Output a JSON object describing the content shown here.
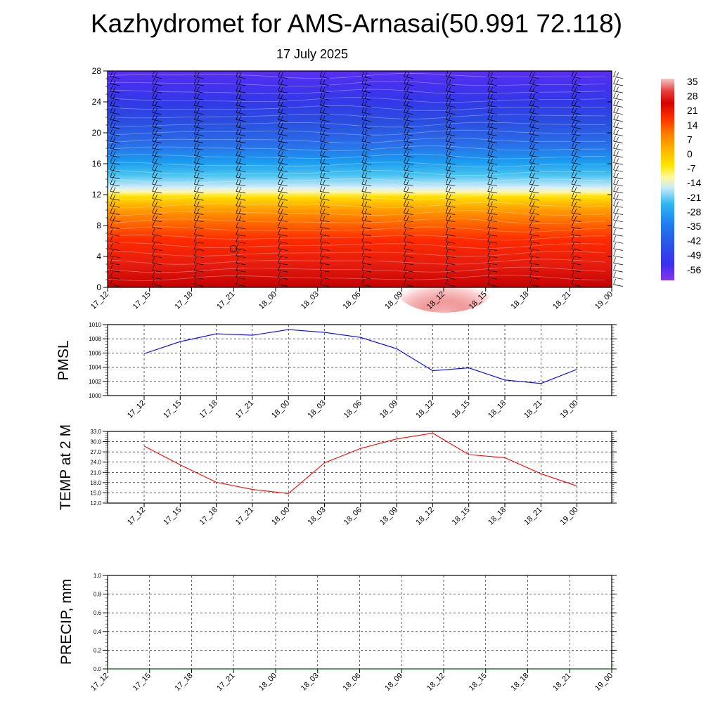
{
  "header": {
    "title": "Kazhydromet for AMS-Arnasai(50.991 72.118)",
    "subtitle": "17 July 2025"
  },
  "time_labels": [
    "17_12",
    "17_15",
    "17_18",
    "17_21",
    "18_00",
    "18_03",
    "18_06",
    "18_09",
    "18_12",
    "18_15",
    "18_18",
    "18_21",
    "19_00"
  ],
  "colors": {
    "pmsl_line": "#0000ff",
    "temp_line": "#ff0000",
    "precip_line": "#006400",
    "colorbar_stops": [
      "#f2c8c8",
      "#e22525",
      "#c80000",
      "#ff3a00",
      "#ff8c00",
      "#ffc800",
      "#fff890",
      "#e8f4f8",
      "#3cbef0",
      "#1e8cf0",
      "#2850e8",
      "#3a2ef0",
      "#8a2be2"
    ]
  },
  "chart_data": [
    {
      "id": "cross-section",
      "type": "heatmap",
      "title": "",
      "xlabel": "",
      "ylabel": "",
      "ylim": [
        0,
        28
      ],
      "yticks": [
        0,
        4,
        8,
        12,
        16,
        20,
        24,
        28
      ],
      "x_tick_labels": [
        "17_12",
        "17_15",
        "17_18",
        "17_21",
        "18_00",
        "18_03",
        "18_06",
        "18_09",
        "18_12",
        "18_15",
        "18_18",
        "18_21",
        "19_00"
      ],
      "colorbar_labels": [
        "35",
        "28",
        "21",
        "14",
        "7",
        "0",
        "-7",
        "-14",
        "-21",
        "-28",
        "-35",
        "-42",
        "-49",
        "-56"
      ],
      "marker_label": "○",
      "wind_barbs": true
    },
    {
      "id": "pmsl",
      "type": "line",
      "title": "",
      "xlabel": "",
      "ylabel": "PMSL",
      "ylim": [
        1000,
        1010
      ],
      "yticks": [
        "1000",
        "1002",
        "1004",
        "1006",
        "1008",
        "1010"
      ],
      "categories": [
        "17_12",
        "17_15",
        "17_18",
        "17_21",
        "18_00",
        "18_03",
        "18_06",
        "18_09",
        "18_12",
        "18_15",
        "18_18",
        "18_21",
        "19_00"
      ],
      "values": [
        1005.9,
        1007.6,
        1008.7,
        1008.5,
        1009.3,
        1008.9,
        1008.2,
        1006.6,
        1003.5,
        1003.9,
        1002.2,
        1001.7,
        1003.7
      ],
      "grid": true
    },
    {
      "id": "temp2m",
      "type": "line",
      "title": "",
      "xlabel": "",
      "ylabel": "TEMP at 2 M",
      "ylim": [
        12,
        33
      ],
      "yticks": [
        "12.0",
        "15.0",
        "18.0",
        "21.0",
        "24.0",
        "27.0",
        "30.0",
        "33.0"
      ],
      "categories": [
        "17_12",
        "17_15",
        "17_18",
        "17_21",
        "18_00",
        "18_03",
        "18_06",
        "18_09",
        "18_12",
        "18_15",
        "18_18",
        "18_21",
        "19_00"
      ],
      "values": [
        28.7,
        23.2,
        18.1,
        16.0,
        14.8,
        23.8,
        28.0,
        30.8,
        32.5,
        26.2,
        25.3,
        20.6,
        17.0
      ],
      "grid": true
    },
    {
      "id": "precip",
      "type": "line",
      "title": "",
      "xlabel": "",
      "ylabel": "PRECIP, mm",
      "ylim": [
        0,
        1
      ],
      "yticks": [
        "0.0",
        "0.2",
        "0.4",
        "0.6",
        "0.8",
        "1.0"
      ],
      "categories": [
        "17_12",
        "17_15",
        "17_18",
        "17_21",
        "18_00",
        "18_03",
        "18_06",
        "18_09",
        "18_12",
        "18_15",
        "18_18",
        "18_21",
        "19_00"
      ],
      "values": [
        0,
        0,
        0,
        0,
        0,
        0,
        0,
        0,
        0,
        0,
        0,
        0,
        0
      ],
      "grid": true
    }
  ]
}
